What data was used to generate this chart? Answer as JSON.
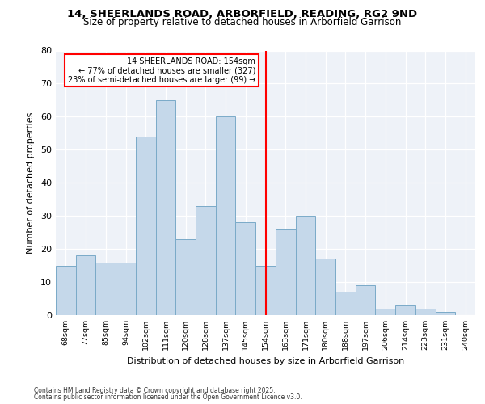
{
  "title1": "14, SHEERLANDS ROAD, ARBORFIELD, READING, RG2 9ND",
  "title2": "Size of property relative to detached houses in Arborfield Garrison",
  "xlabel": "Distribution of detached houses by size in Arborfield Garrison",
  "ylabel": "Number of detached properties",
  "categories": [
    "68sqm",
    "77sqm",
    "85sqm",
    "94sqm",
    "102sqm",
    "111sqm",
    "120sqm",
    "128sqm",
    "137sqm",
    "145sqm",
    "154sqm",
    "163sqm",
    "171sqm",
    "180sqm",
    "188sqm",
    "197sqm",
    "206sqm",
    "214sqm",
    "223sqm",
    "231sqm",
    "240sqm"
  ],
  "bar_values": [
    15,
    18,
    16,
    16,
    54,
    65,
    23,
    33,
    60,
    28,
    15,
    26,
    30,
    17,
    7,
    9,
    2,
    3,
    2,
    1,
    0
  ],
  "bar_color": "#c5d8ea",
  "bar_edge_color": "#7aaac8",
  "reference_line_idx": 10,
  "reference_label": "14 SHEERLANDS ROAD: 154sqm",
  "annotation_line1": "← 77% of detached houses are smaller (327)",
  "annotation_line2": "23% of semi-detached houses are larger (99) →",
  "ylim": [
    0,
    80
  ],
  "yticks": [
    0,
    10,
    20,
    30,
    40,
    50,
    60,
    70,
    80
  ],
  "footer1": "Contains HM Land Registry data © Crown copyright and database right 2025.",
  "footer2": "Contains public sector information licensed under the Open Government Licence v3.0.",
  "plot_bg_color": "#eef2f8"
}
